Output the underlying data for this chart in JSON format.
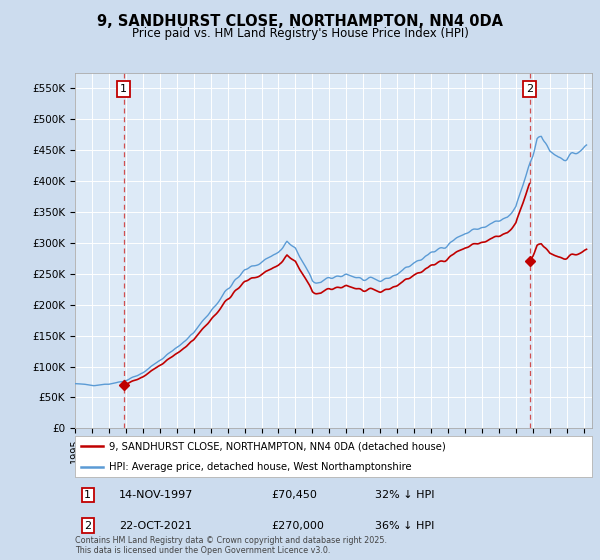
{
  "title": "9, SANDHURST CLOSE, NORTHAMPTON, NN4 0DA",
  "subtitle": "Price paid vs. HM Land Registry's House Price Index (HPI)",
  "legend_line1": "9, SANDHURST CLOSE, NORTHAMPTON, NN4 0DA (detached house)",
  "legend_line2": "HPI: Average price, detached house, West Northamptonshire",
  "footer": "Contains HM Land Registry data © Crown copyright and database right 2025.\nThis data is licensed under the Open Government Licence v3.0.",
  "annotation1_date": "14-NOV-1997",
  "annotation1_price": "£70,450",
  "annotation1_hpi": "32% ↓ HPI",
  "annotation2_date": "22-OCT-2021",
  "annotation2_price": "£270,000",
  "annotation2_hpi": "36% ↓ HPI",
  "sale1_x": 1997.871,
  "sale1_y": 70450,
  "sale2_x": 2021.804,
  "sale2_y": 270000,
  "ylim": [
    0,
    575000
  ],
  "xlim": [
    1995.0,
    2025.5
  ],
  "yticks": [
    0,
    50000,
    100000,
    150000,
    200000,
    250000,
    300000,
    350000,
    400000,
    450000,
    500000,
    550000
  ],
  "ytick_labels": [
    "£0",
    "£50K",
    "£100K",
    "£150K",
    "£200K",
    "£250K",
    "£300K",
    "£350K",
    "£400K",
    "£450K",
    "£500K",
    "£550K"
  ],
  "hpi_color": "#5b9bd5",
  "sale_color": "#c00000",
  "vline_color": "#d05050",
  "background_color": "#ccdcee",
  "plot_bg_color": "#ddeaf7",
  "grid_color": "#ffffff",
  "ann_box_face": "#ffffff",
  "ann_box_edge": "#c00000"
}
